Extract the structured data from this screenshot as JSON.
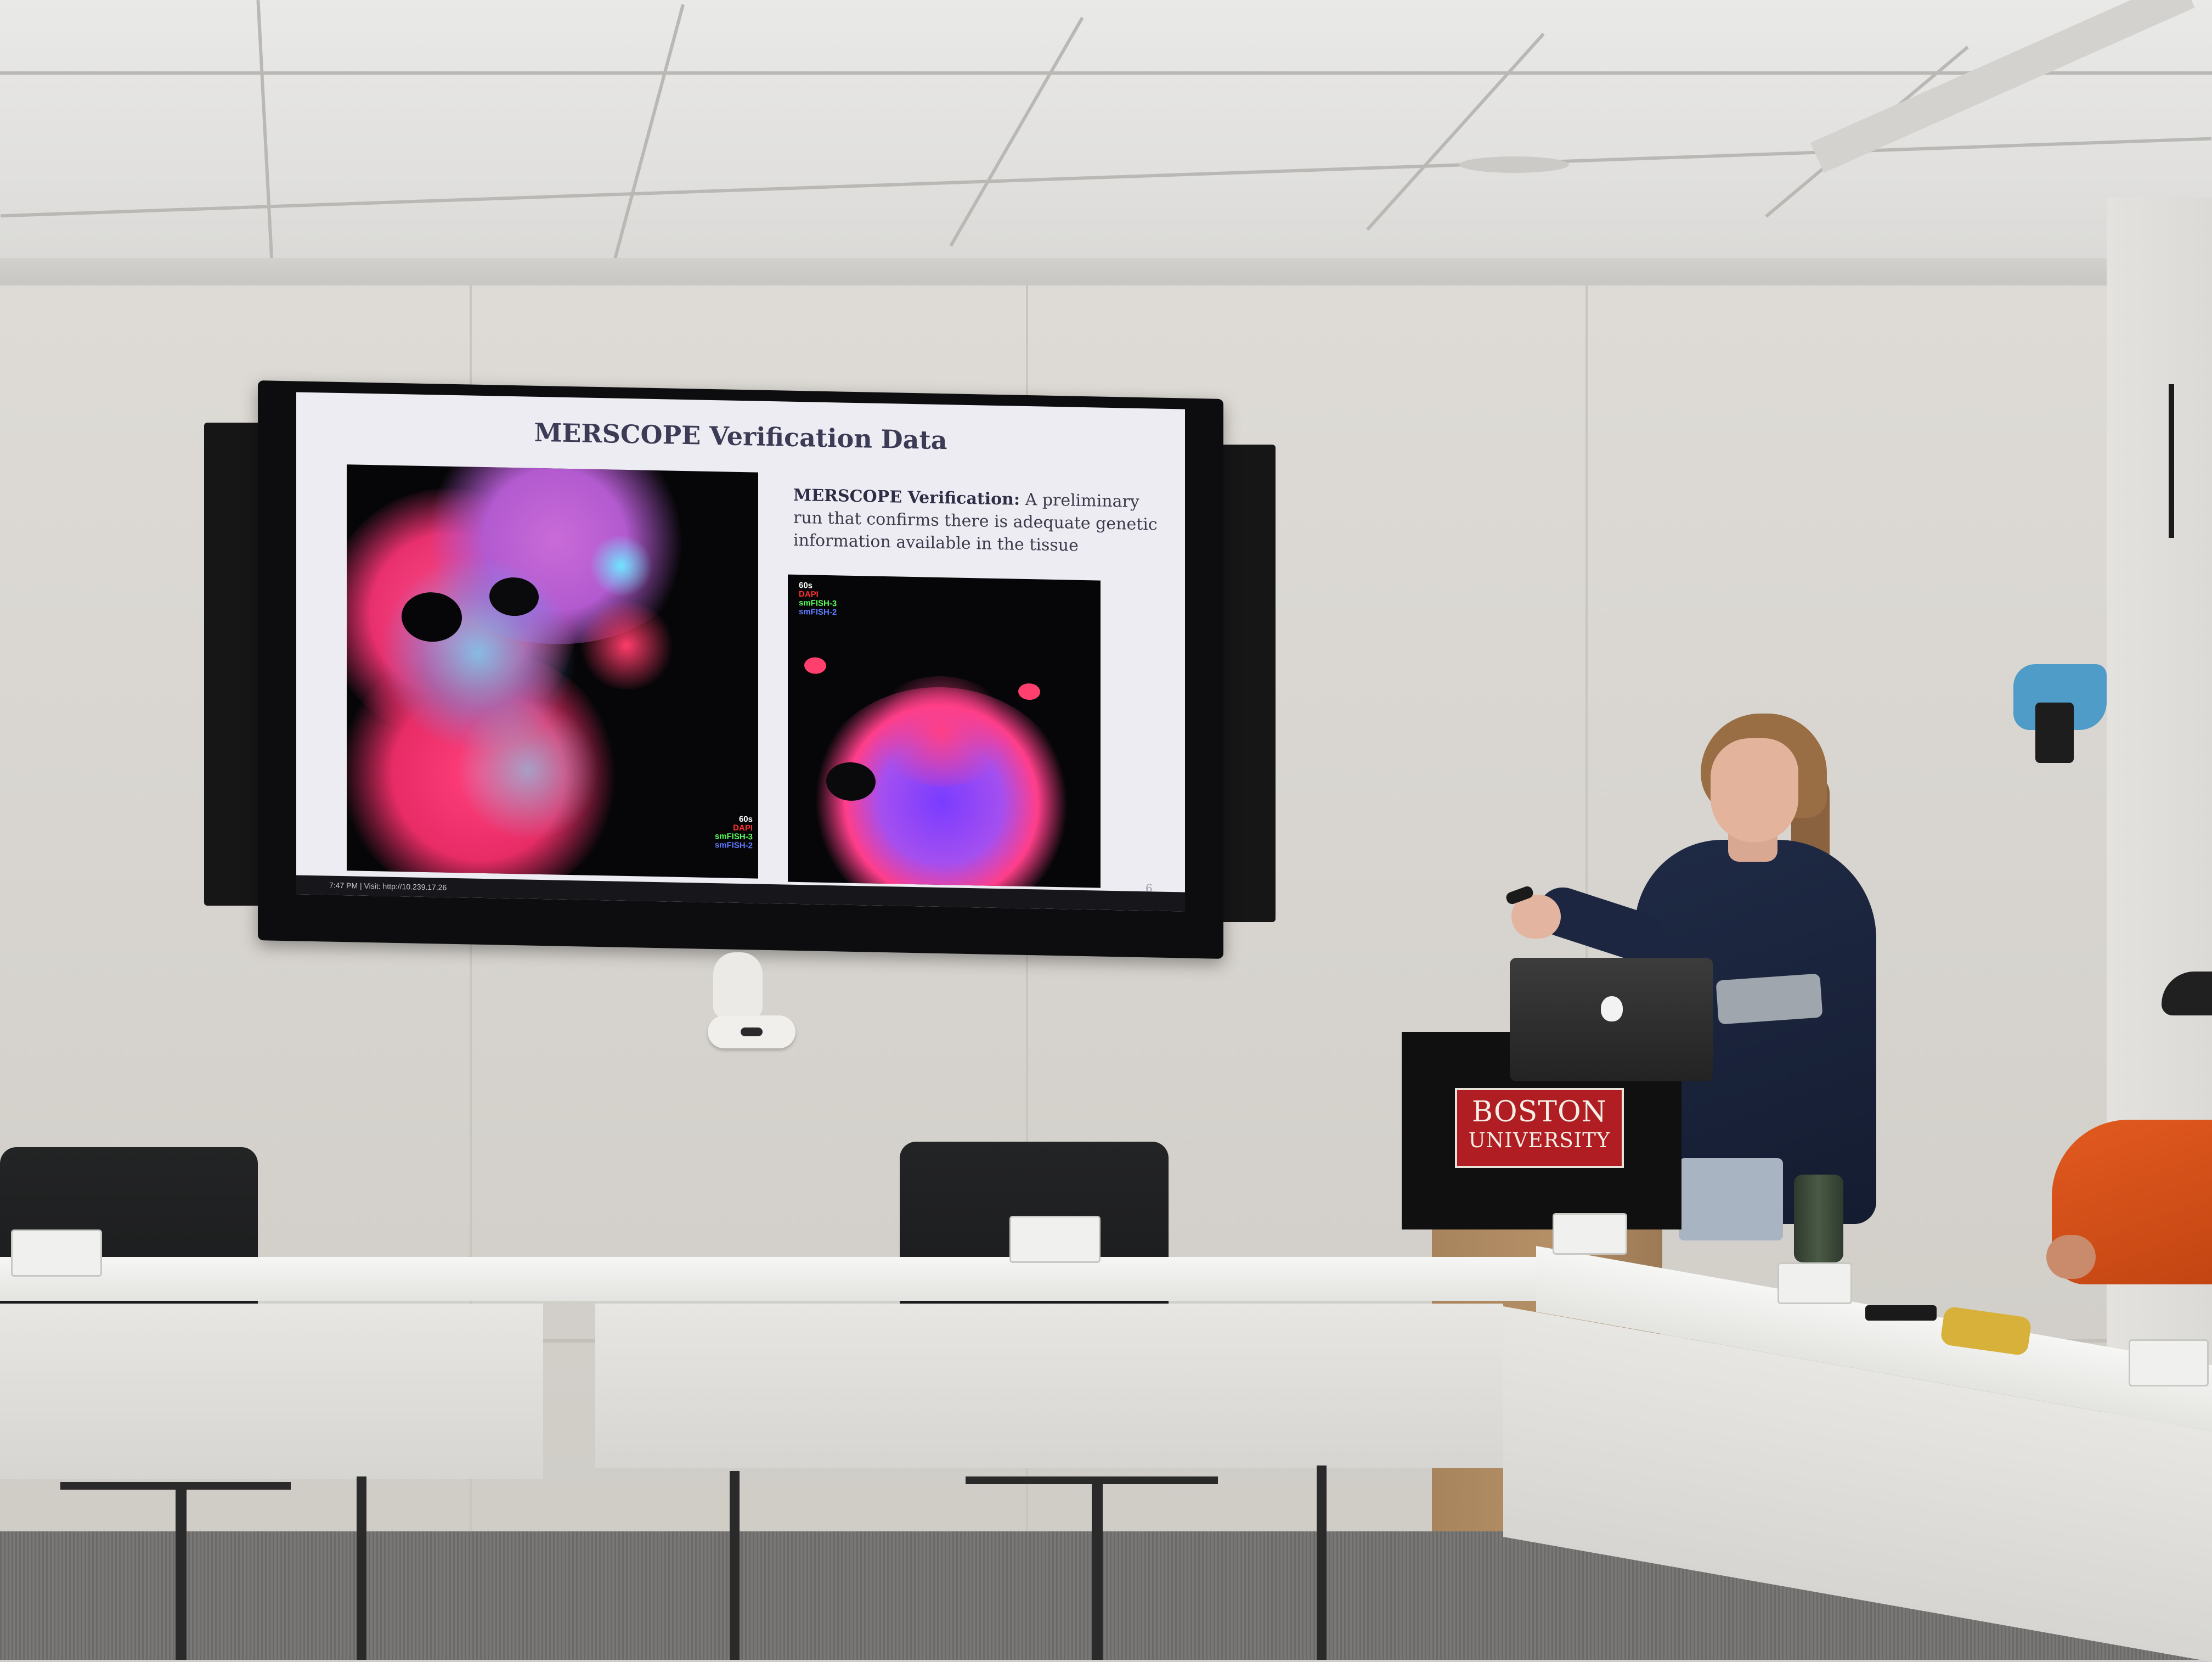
{
  "slide": {
    "title": "MERSCOPE Verification Data",
    "body_bold": "MERSCOPE Verification:",
    "body_text": " A preliminary run that confirms there is adequate genetic information available in the tissue",
    "page_number": "6",
    "legend": [
      "60s",
      "DAPI",
      "smFISH-3",
      "smFISH-2"
    ],
    "status_bar": "7:47 PM  |  Visit: http://10.239.17.26"
  },
  "podium_sign": {
    "line1": "BOSTON",
    "line2": "UNIVERSITY"
  },
  "colors": {
    "sign_red": "#b01e23",
    "slide_background": "#eeecf3",
    "microscopy_red": "#ff2a55",
    "microscopy_blue": "#5a5cff",
    "microscopy_cyan": "#4fe3ff"
  }
}
